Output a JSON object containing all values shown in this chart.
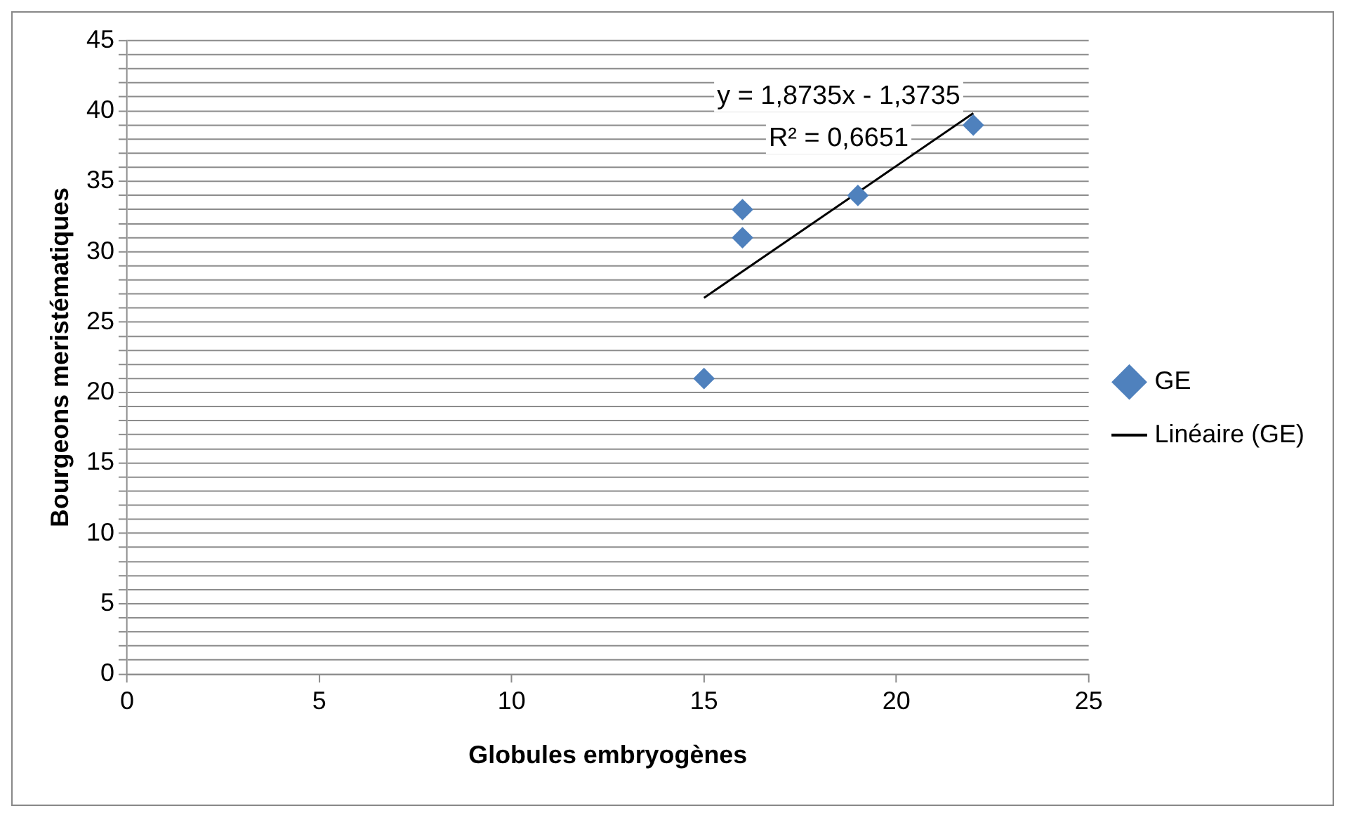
{
  "chart_data": {
    "type": "scatter",
    "xlabel": "Globules embryogènes",
    "ylabel": "Bourgeons meristématiques",
    "xlim": [
      0,
      25
    ],
    "xticks": [
      0,
      5,
      10,
      15,
      20,
      25
    ],
    "ylim": [
      0,
      45
    ],
    "yticks": [
      0,
      {
        "value": 1,
        "label": null
      },
      {
        "value": 2,
        "label": null
      },
      {
        "value": 3,
        "label": null
      },
      {
        "value": 4,
        "label": null
      },
      5,
      {
        "value": 6,
        "label": null
      },
      {
        "value": 7,
        "label": null
      },
      {
        "value": 8,
        "label": null
      },
      {
        "value": 9,
        "label": null
      },
      10,
      {
        "value": 11,
        "label": null
      },
      {
        "value": 12,
        "label": null
      },
      {
        "value": 13,
        "label": null
      },
      {
        "value": 14,
        "label": null
      },
      15,
      {
        "value": 16,
        "label": null
      },
      {
        "value": 17,
        "label": null
      },
      {
        "value": 18,
        "label": null
      },
      {
        "value": 19,
        "label": null
      },
      20,
      {
        "value": 21,
        "label": null
      },
      {
        "value": 22,
        "label": null
      },
      {
        "value": 23,
        "label": null
      },
      {
        "value": 24,
        "label": null
      },
      25,
      {
        "value": 26,
        "label": null
      },
      {
        "value": 27,
        "label": null
      },
      {
        "value": 28,
        "label": null
      },
      {
        "value": 29,
        "label": null
      },
      30,
      {
        "value": 31,
        "label": null
      },
      {
        "value": 32,
        "label": null
      },
      {
        "value": 33,
        "label": null
      },
      {
        "value": 34,
        "label": null
      },
      35,
      {
        "value": 36,
        "label": null
      },
      {
        "value": 37,
        "label": null
      },
      {
        "value": 38,
        "label": null
      },
      {
        "value": 39,
        "label": null
      },
      40,
      {
        "value": 41,
        "label": null
      },
      {
        "value": 42,
        "label": null
      },
      {
        "value": 43,
        "label": null
      },
      {
        "value": 44,
        "label": null
      },
      45
    ],
    "grid": "y",
    "legend": "right",
    "marker": "diamond",
    "series": [
      {
        "name": "GE",
        "color": "#4f81bd",
        "x": [
          15,
          16,
          16,
          19,
          22
        ],
        "values": [
          21,
          31,
          33,
          34,
          39
        ]
      },
      {
        "name": "Linéaire (GE)",
        "type": "line",
        "color": "#000000",
        "marker": "none",
        "line_style": "solid",
        "x": [
          15,
          22
        ],
        "values": [
          26.73,
          39.84
        ]
      }
    ],
    "annotations": [
      "y = 1,8735x - 1,3735",
      "R² = 0,6651"
    ]
  }
}
